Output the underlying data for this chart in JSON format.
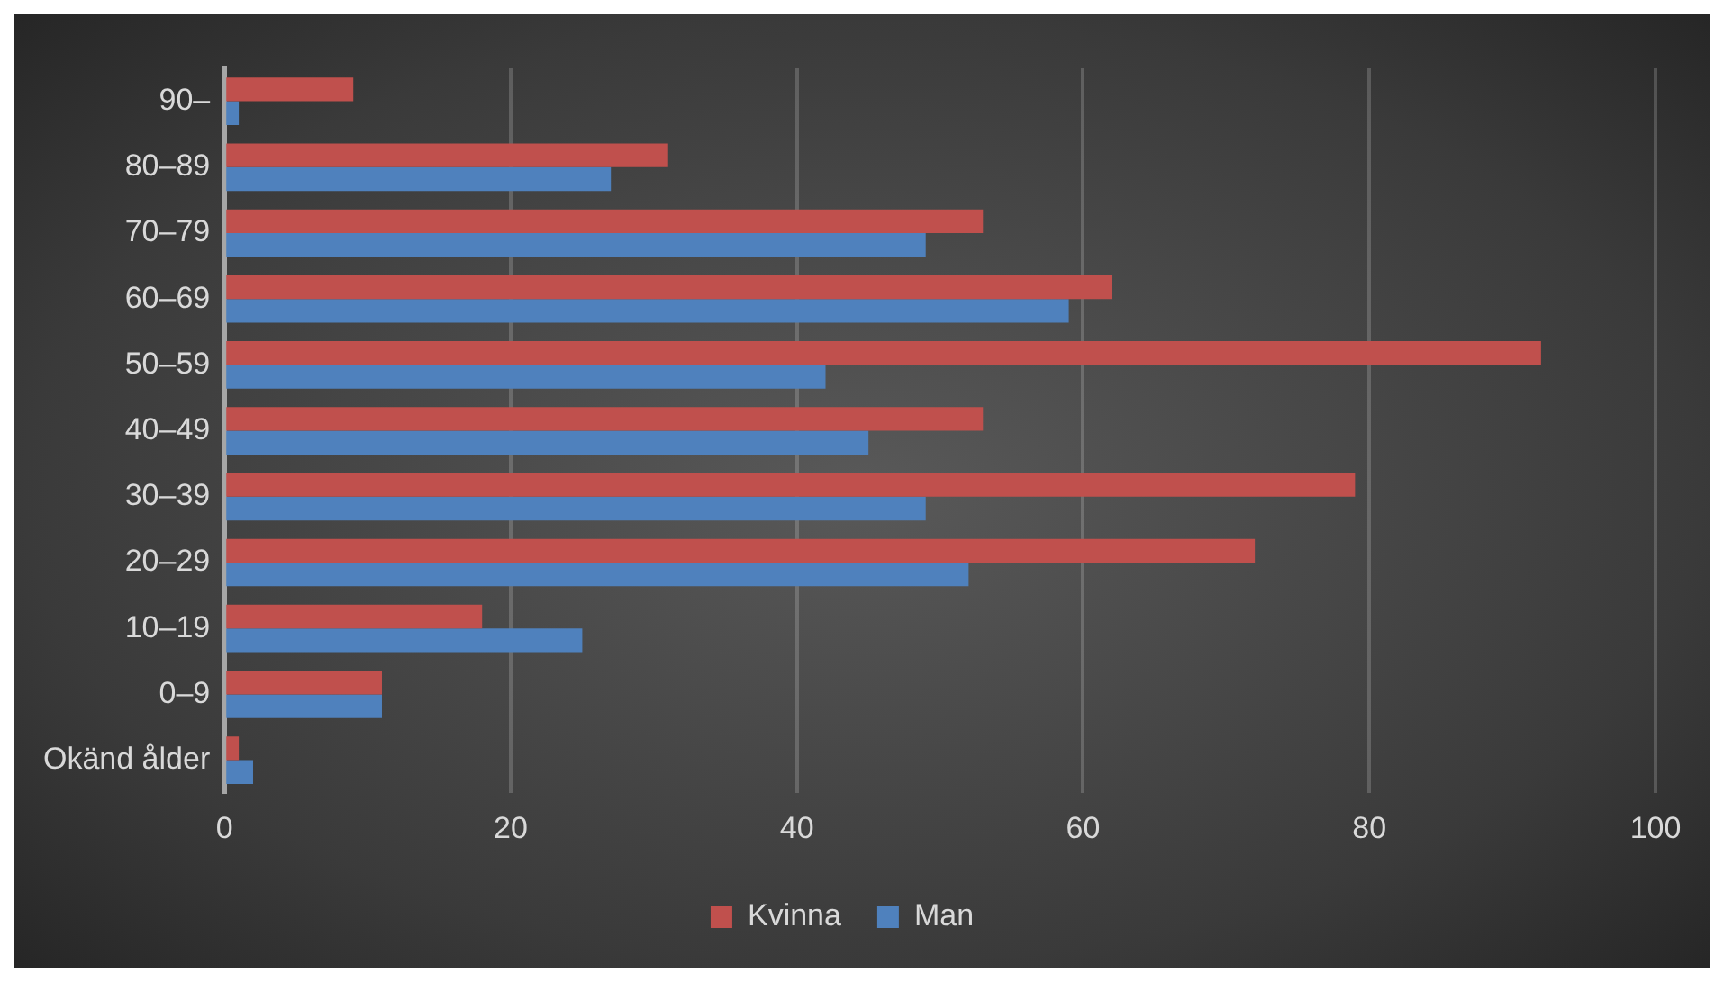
{
  "chart_data": {
    "type": "bar",
    "orientation": "horizontal",
    "categories": [
      "90–",
      "80–89",
      "70–79",
      "60–69",
      "50–59",
      "40–49",
      "30–39",
      "20–29",
      "10–19",
      "0–9",
      "Okänd ålder"
    ],
    "series": [
      {
        "name": "Kvinna",
        "color": "#c0504d",
        "values": [
          9,
          31,
          53,
          62,
          92,
          53,
          79,
          72,
          18,
          11,
          1
        ]
      },
      {
        "name": "Man",
        "color": "#4f81bd",
        "values": [
          1,
          27,
          49,
          59,
          42,
          45,
          49,
          52,
          25,
          11,
          2
        ]
      }
    ],
    "xlim": [
      0,
      100
    ],
    "xticks": [
      0,
      20,
      40,
      60,
      80,
      100
    ],
    "grid": "x",
    "legend": "bottom"
  }
}
